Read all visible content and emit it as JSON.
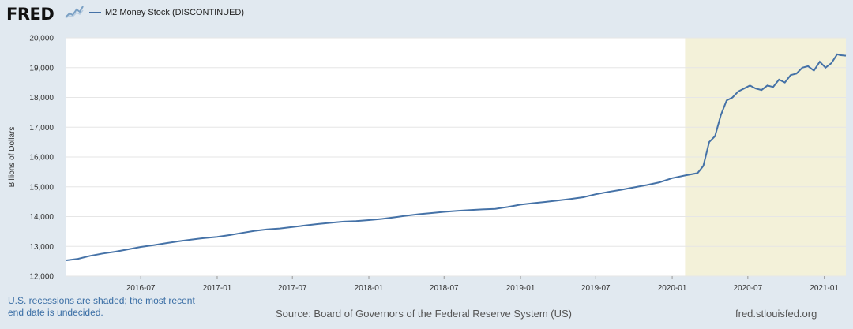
{
  "header": {
    "logo_text": "FRED",
    "logo_icon": "fred-chart-logo-icon"
  },
  "footer": {
    "note_line1": "U.S. recessions are shaded; the most recent",
    "note_line2": "end date is undecided.",
    "source": "Source: Board of Governors of the Federal Reserve System (US)",
    "site": "fred.stlouisfed.org"
  },
  "colors": {
    "line": "#4572a7",
    "recession": "#f3f1d9",
    "plot_bg": "#ffffff",
    "page_bg": "#e1e9f0",
    "grid": "#e6e6e6"
  },
  "chart_data": {
    "type": "line",
    "title": "",
    "xlabel": "",
    "ylabel": "Billions of Dollars",
    "ylim": [
      12000,
      20000
    ],
    "xlim": [
      "2016-01-04",
      "2021-02-22"
    ],
    "grid": true,
    "legend": "top-left",
    "yticks": [
      12000,
      13000,
      14000,
      15000,
      16000,
      17000,
      18000,
      19000,
      20000
    ],
    "ytick_labels": [
      "12,000",
      "13,000",
      "14,000",
      "15,000",
      "16,000",
      "17,000",
      "18,000",
      "19,000",
      "20,000"
    ],
    "xticks": [
      "2016-07-01",
      "2017-01-01",
      "2017-07-01",
      "2018-01-01",
      "2018-07-01",
      "2019-01-01",
      "2019-07-01",
      "2020-01-01",
      "2020-07-01",
      "2021-01-01"
    ],
    "xtick_labels": [
      "2016-07",
      "2017-01",
      "2017-07",
      "2018-01",
      "2018-07",
      "2019-01",
      "2019-07",
      "2020-01",
      "2020-07",
      "2021-01"
    ],
    "recession": {
      "start": "2020-02-01",
      "label": "U.S. recessions are shaded; the most recent end date is undecided."
    },
    "series": [
      {
        "name": "M2 Money Stock (DISCONTINUED)",
        "x": [
          "2016-01-04",
          "2016-02-01",
          "2016-03-01",
          "2016-04-01",
          "2016-05-01",
          "2016-06-01",
          "2016-07-01",
          "2016-08-01",
          "2016-09-01",
          "2016-10-01",
          "2016-11-01",
          "2016-12-01",
          "2017-01-01",
          "2017-02-01",
          "2017-03-01",
          "2017-04-01",
          "2017-05-01",
          "2017-06-01",
          "2017-07-01",
          "2017-08-01",
          "2017-09-01",
          "2017-10-01",
          "2017-11-01",
          "2017-12-01",
          "2018-01-01",
          "2018-02-01",
          "2018-03-01",
          "2018-04-01",
          "2018-05-01",
          "2018-06-01",
          "2018-07-01",
          "2018-08-01",
          "2018-09-01",
          "2018-10-01",
          "2018-11-01",
          "2018-12-01",
          "2019-01-01",
          "2019-02-01",
          "2019-03-01",
          "2019-04-01",
          "2019-05-01",
          "2019-06-01",
          "2019-07-01",
          "2019-08-01",
          "2019-09-01",
          "2019-10-01",
          "2019-11-01",
          "2019-12-01",
          "2020-01-01",
          "2020-02-01",
          "2020-03-02",
          "2020-03-16",
          "2020-03-30",
          "2020-04-13",
          "2020-04-27",
          "2020-05-11",
          "2020-05-25",
          "2020-06-08",
          "2020-06-22",
          "2020-07-06",
          "2020-07-20",
          "2020-08-03",
          "2020-08-17",
          "2020-08-31",
          "2020-09-14",
          "2020-09-28",
          "2020-10-12",
          "2020-10-26",
          "2020-11-09",
          "2020-11-23",
          "2020-12-07",
          "2020-12-21",
          "2021-01-04",
          "2021-01-18",
          "2021-02-01",
          "2021-02-08",
          "2021-02-22"
        ],
        "values": [
          12530,
          12580,
          12680,
          12760,
          12820,
          12900,
          12980,
          13040,
          13110,
          13170,
          13230,
          13280,
          13320,
          13380,
          13450,
          13520,
          13570,
          13600,
          13650,
          13700,
          13750,
          13790,
          13830,
          13850,
          13880,
          13920,
          13970,
          14030,
          14080,
          14120,
          14160,
          14190,
          14220,
          14240,
          14260,
          14320,
          14400,
          14450,
          14490,
          14540,
          14590,
          14650,
          14750,
          14830,
          14900,
          14980,
          15060,
          15150,
          15290,
          15380,
          15460,
          15700,
          16500,
          16700,
          17400,
          17900,
          18000,
          18200,
          18300,
          18400,
          18300,
          18250,
          18400,
          18350,
          18600,
          18500,
          18750,
          18800,
          19000,
          19050,
          18900,
          19200,
          19000,
          19150,
          19450,
          19420,
          19400
        ]
      }
    ]
  }
}
